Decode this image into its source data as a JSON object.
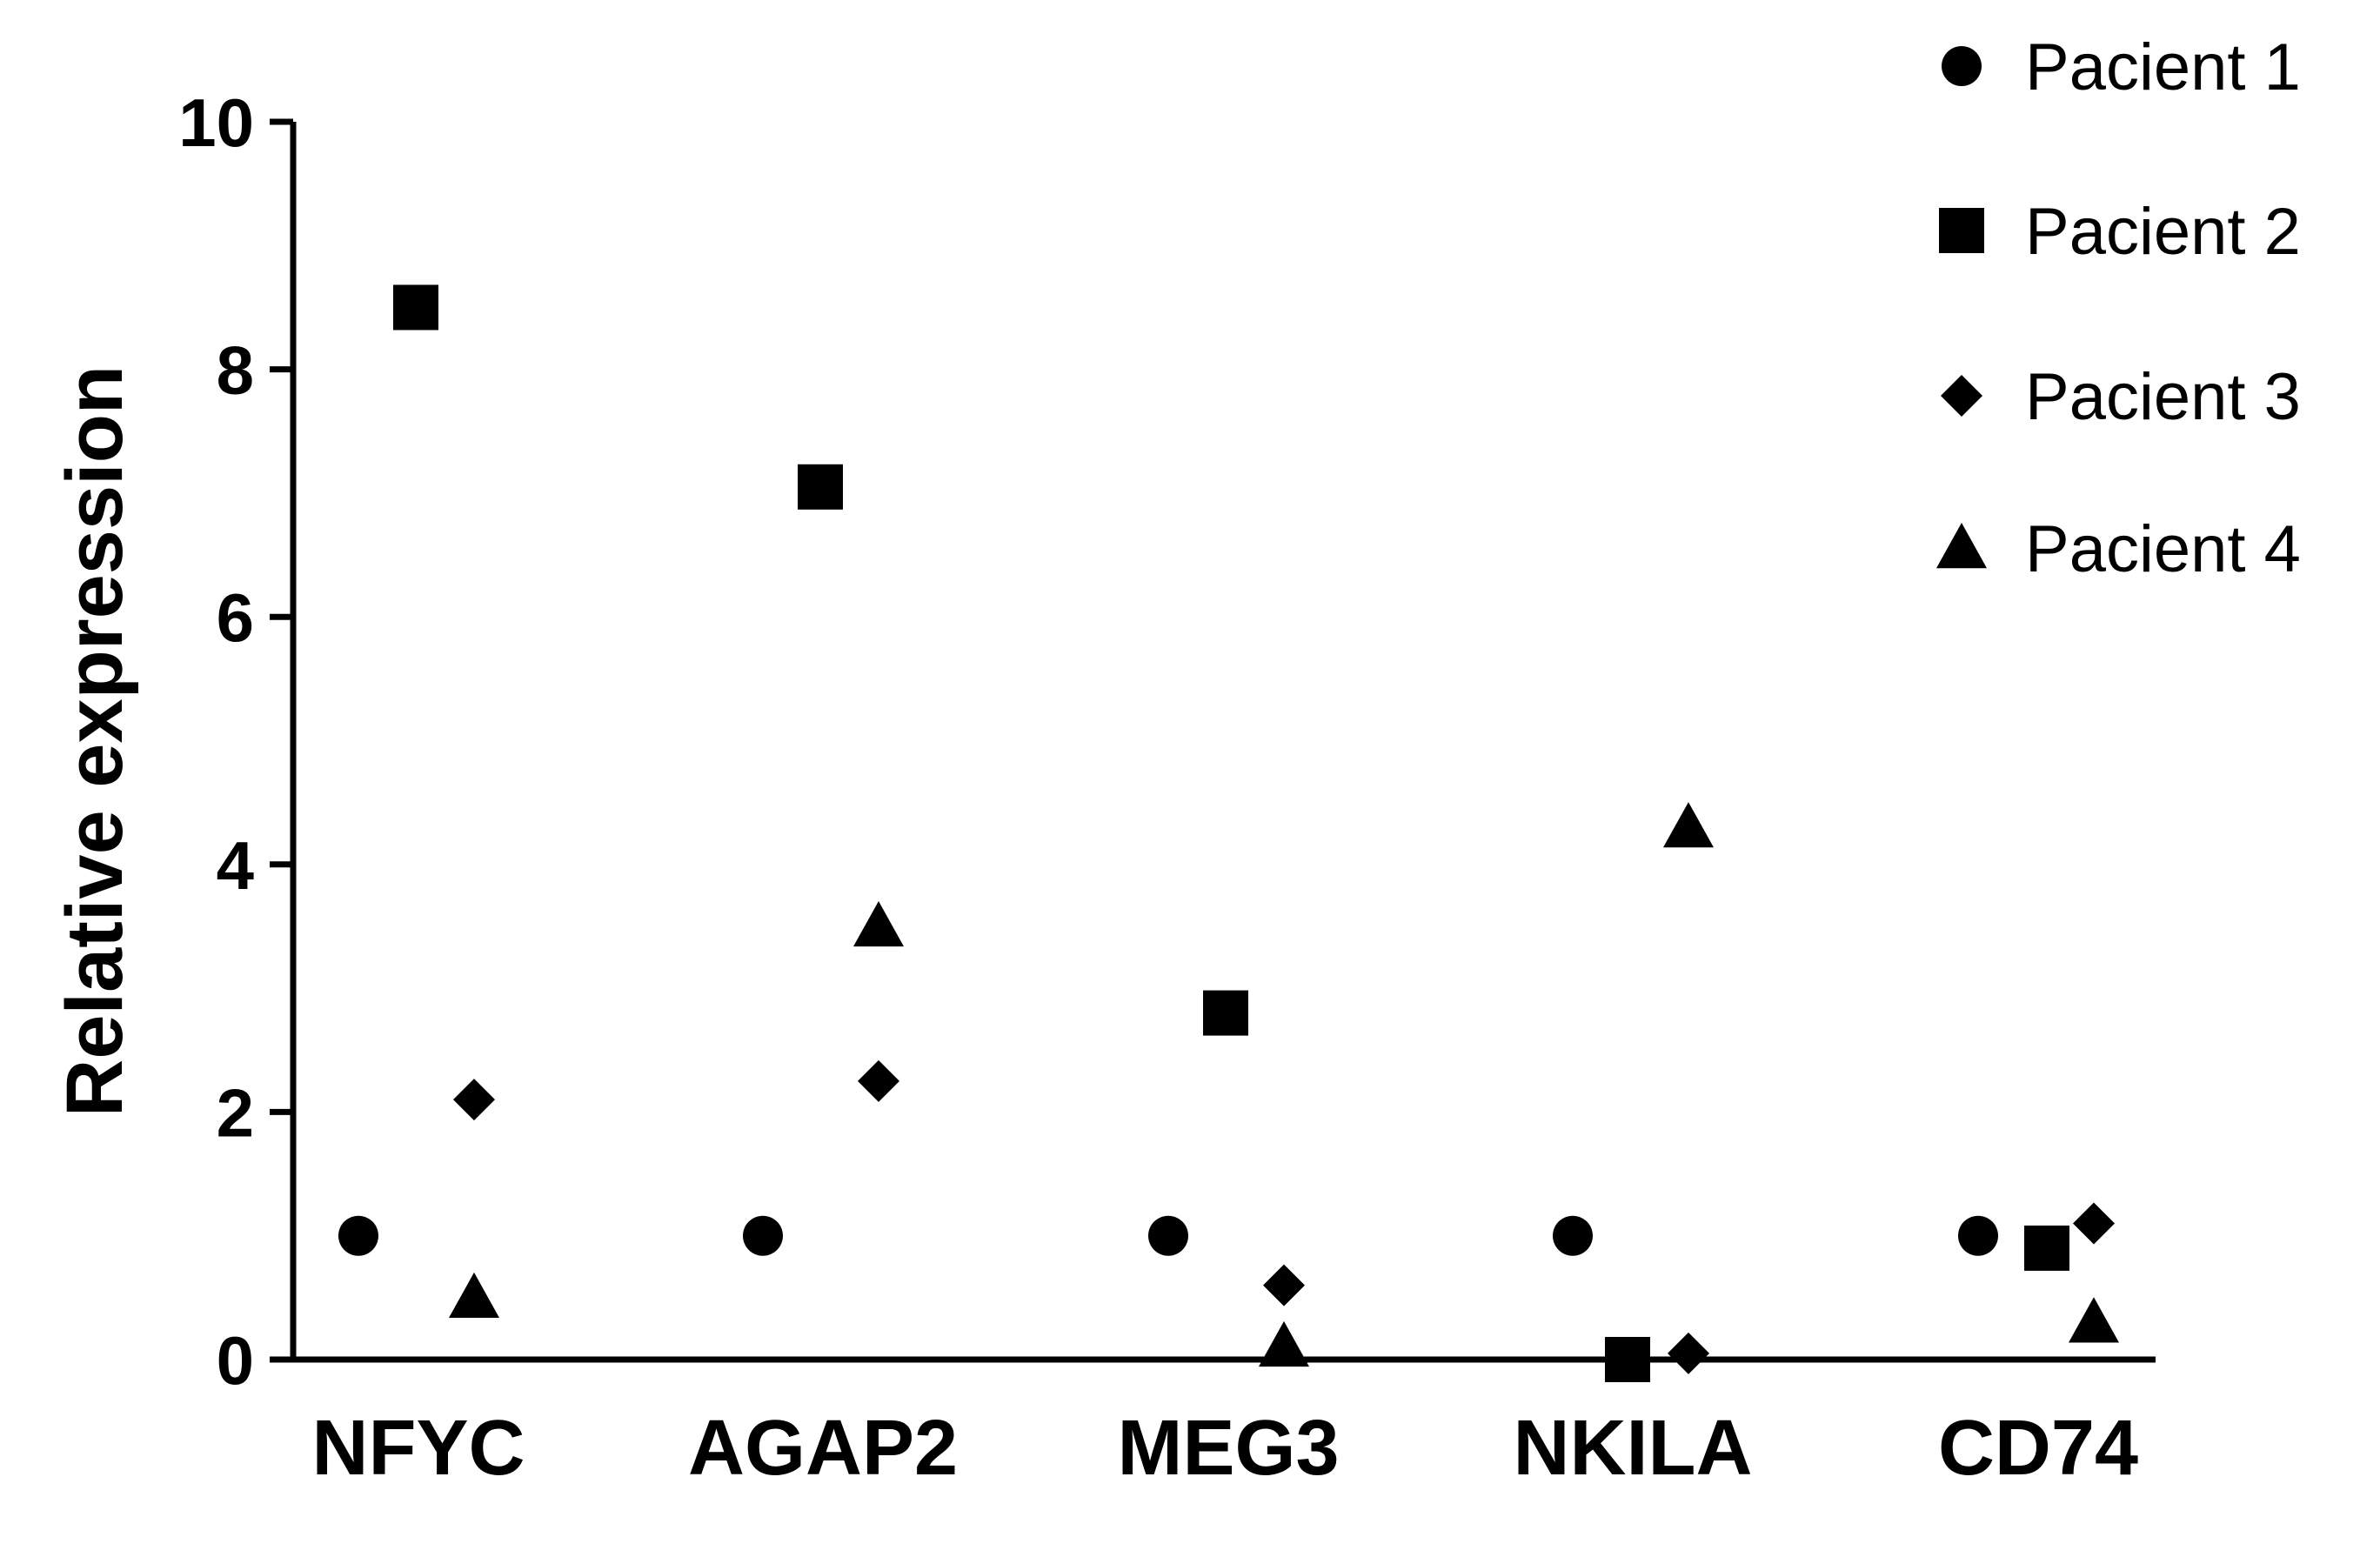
{
  "chart_data": {
    "type": "scatter",
    "title": "",
    "xlabel": "",
    "ylabel": "Relative expression",
    "categories": [
      "NFYC",
      "AGAP2",
      "MEG3",
      "NKILA",
      "CD74"
    ],
    "ylim": [
      0,
      10
    ],
    "yticks": [
      "0",
      "2",
      "4",
      "6",
      "8",
      "10"
    ],
    "grid": false,
    "legend_position": "top-right",
    "series": [
      {
        "name": "Pacient 1",
        "marker": "circle",
        "values": [
          1,
          1,
          1,
          1,
          1
        ]
      },
      {
        "name": "Pacient 2",
        "marker": "square",
        "values": [
          8.5,
          7.05,
          2.8,
          0,
          0.9
        ]
      },
      {
        "name": "Pacient 3",
        "marker": "diamond",
        "values": [
          2.1,
          2.25,
          0.6,
          0.05,
          1.1
        ]
      },
      {
        "name": "Pacient 4",
        "marker": "triangle",
        "values": [
          0.5,
          3.5,
          0.05,
          4.3,
          0.3
        ]
      }
    ]
  }
}
